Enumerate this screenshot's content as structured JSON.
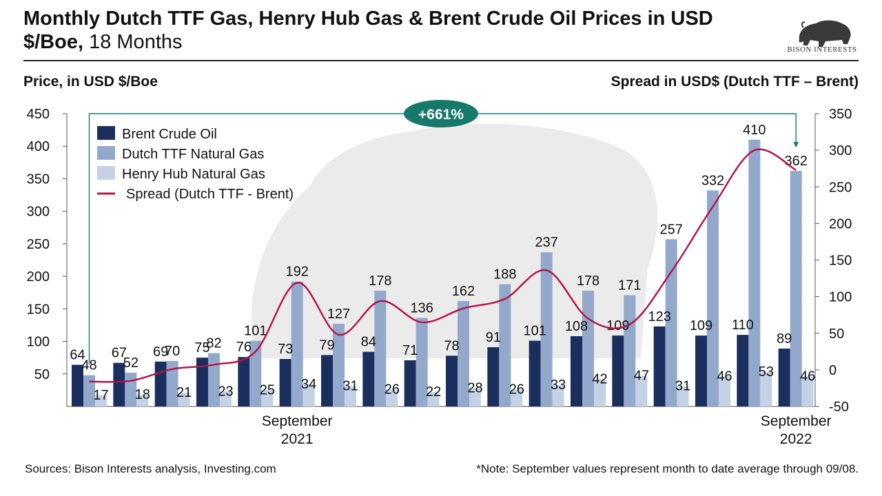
{
  "header": {
    "title_bold": "Monthly Dutch TTF Gas, Henry Hub Gas & Brent Crude Oil Prices in USD $/Boe,",
    "title_rest": " 18 Months",
    "logo_text": "BISON INTERESTS",
    "logo_icon": "bison-icon"
  },
  "axis_titles": {
    "left": "Price, in USD $/Boe",
    "right": "Spread in USD$ (Dutch TTF – Brent)"
  },
  "footer": {
    "sources": "Sources: Bison Interests analysis, Investing.com",
    "note": "*Note: September values represent month to date average through 09/08."
  },
  "chart_data": {
    "type": "bar",
    "categories": [
      "2021-04",
      "2021-05",
      "2021-06",
      "2021-07",
      "2021-08",
      "2021-09",
      "2021-10",
      "2021-11",
      "2021-12",
      "2022-01",
      "2022-02",
      "2022-03",
      "2022-04",
      "2022-05",
      "2022-06",
      "2022-07",
      "2022-08",
      "2022-09"
    ],
    "x_tick_labels": [
      {
        "category": "2021-09",
        "line1": "September",
        "line2": "2021"
      },
      {
        "category": "2022-09",
        "line1": "September",
        "line2": "2022"
      }
    ],
    "series": [
      {
        "name": "Brent Crude Oil",
        "color": "#1b2f5e",
        "values": [
          64,
          67,
          69,
          75,
          76,
          73,
          79,
          84,
          71,
          78,
          91,
          101,
          108,
          109,
          123,
          109,
          110,
          89
        ]
      },
      {
        "name": "Dutch TTF Natural Gas",
        "color": "#93a9cc",
        "values": [
          48,
          52,
          70,
          82,
          101,
          192,
          127,
          178,
          136,
          162,
          188,
          237,
          178,
          171,
          257,
          332,
          410,
          362
        ]
      },
      {
        "name": "Henry Hub Natural Gas",
        "color": "#c5d2e6",
        "values": [
          17,
          18,
          21,
          23,
          25,
          34,
          31,
          26,
          22,
          28,
          26,
          33,
          42,
          47,
          31,
          46,
          53,
          46
        ]
      }
    ],
    "spread": {
      "name": "Spread (Dutch TTF - Brent)",
      "color": "#b3154b",
      "axis": "right",
      "values": [
        -16,
        -15,
        1,
        7,
        25,
        119,
        48,
        94,
        65,
        84,
        97,
        136,
        70,
        62,
        134,
        223,
        300,
        273
      ]
    },
    "left_axis": {
      "ylim": [
        0,
        450
      ],
      "ticks": [
        50,
        100,
        150,
        200,
        250,
        300,
        350,
        400,
        450
      ]
    },
    "right_axis": {
      "ylim": [
        -50,
        350
      ],
      "ticks": [
        -50,
        0,
        50,
        100,
        150,
        200,
        250,
        300,
        350
      ]
    },
    "annotation": {
      "text": "+661%",
      "color": "#16796a",
      "from_category": "2021-04",
      "to_category": "2022-09"
    },
    "legend_position": "top-left"
  }
}
